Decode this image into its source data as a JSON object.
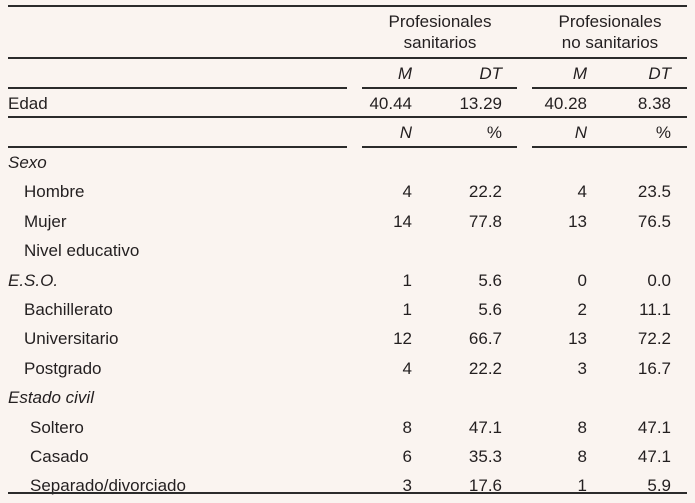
{
  "table": {
    "groups": [
      {
        "line1": "Profesionales",
        "line2": "sanitarios"
      },
      {
        "line1": "Profesionales",
        "line2": "no sanitarios"
      }
    ],
    "sub_headers_stats": [
      "M",
      "DT",
      "M",
      "DT"
    ],
    "edad": {
      "label": "Edad",
      "values": [
        "40.44",
        "13.29",
        "40.28",
        "8.38"
      ]
    },
    "sub_headers_counts": [
      "N",
      "%",
      "N",
      "%"
    ],
    "rows": [
      {
        "label": "Sexo",
        "style": "italic",
        "indent": 0,
        "values": [
          "",
          "",
          "",
          ""
        ]
      },
      {
        "label": "Hombre",
        "style": "normal",
        "indent": 1,
        "values": [
          "4",
          "22.2",
          "4",
          "23.5"
        ]
      },
      {
        "label": "Mujer",
        "style": "normal",
        "indent": 1,
        "values": [
          "14",
          "77.8",
          "13",
          "76.5"
        ]
      },
      {
        "label": "Nivel educativo",
        "style": "normal",
        "indent": 1,
        "values": [
          "",
          "",
          "",
          ""
        ]
      },
      {
        "label": "E.S.O.",
        "style": "italic",
        "indent": 0,
        "values": [
          "1",
          "5.6",
          "0",
          "0.0"
        ]
      },
      {
        "label": "Bachillerato",
        "style": "normal",
        "indent": 1,
        "values": [
          "1",
          "5.6",
          "2",
          "11.1"
        ]
      },
      {
        "label": "Universitario",
        "style": "normal",
        "indent": 1,
        "values": [
          "12",
          "66.7",
          "13",
          "72.2"
        ]
      },
      {
        "label": "Postgrado",
        "style": "normal",
        "indent": 1,
        "values": [
          "4",
          "22.2",
          "3",
          "16.7"
        ]
      },
      {
        "label": "Estado civil",
        "style": "italic",
        "indent": 0,
        "values": [
          "",
          "",
          "",
          ""
        ]
      },
      {
        "label": "Soltero",
        "style": "normal",
        "indent": 2,
        "values": [
          "8",
          "47.1",
          "8",
          "47.1"
        ]
      },
      {
        "label": "Casado",
        "style": "normal",
        "indent": 2,
        "values": [
          "6",
          "35.3",
          "8",
          "47.1"
        ]
      },
      {
        "label": "Separado/divorciado",
        "style": "normal",
        "indent": 2,
        "values": [
          "3",
          "17.6",
          "1",
          "5.9"
        ]
      }
    ]
  }
}
